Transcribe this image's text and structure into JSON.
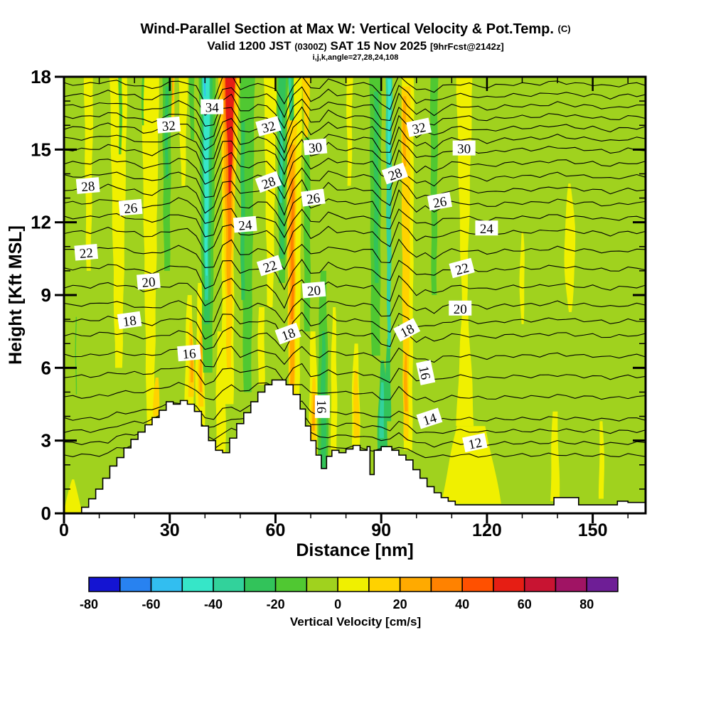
{
  "header": {
    "title_main": "Wind-Parallel Section at Max W: Vertical Velocity & Pot.Temp.",
    "title_suffix": "(C)",
    "subtitle_p1": "Valid 1200 JST ",
    "subtitle_small1": "(0300Z)",
    "subtitle_p2": " SAT 15 Nov 2025 ",
    "subtitle_small2": "[9hrFcst@2142z]",
    "line3": "i,j,k,angle=27,28,24,108"
  },
  "chart_data": {
    "type": "heatmap",
    "title": "Wind-Parallel Section at Max W: Vertical Velocity & Pot.Temp. (C)",
    "xlabel": "Distance [nm]",
    "ylabel": "Height [Kft MSL]",
    "xlim": [
      0,
      165
    ],
    "ylim": [
      0,
      18
    ],
    "x_major_ticks": [
      0,
      30,
      60,
      90,
      120,
      150
    ],
    "x_minor_step": 10,
    "y_major_ticks": [
      0,
      3,
      6,
      9,
      12,
      15,
      18
    ],
    "y_minor_step": 1,
    "grid": false,
    "colorbar": {
      "label": "Vertical Velocity [cm/s]",
      "min": -80,
      "max": 90,
      "step": 10,
      "tick_values": [
        -80,
        -60,
        -40,
        -20,
        0,
        20,
        40,
        60,
        80
      ],
      "colors": [
        "#1414d2",
        "#2882f0",
        "#32bef0",
        "#36e6c8",
        "#32d29b",
        "#32c35a",
        "#50c832",
        "#a0d21e",
        "#f0f000",
        "#ffd200",
        "#ffaa00",
        "#ff8200",
        "#ff5000",
        "#e61e14",
        "#c81432",
        "#a01464",
        "#6e1e96"
      ]
    },
    "contour": {
      "variable": "Potential Temperature (C)",
      "interval": 1,
      "labeled_levels": [
        12,
        14,
        16,
        18,
        20,
        22,
        24,
        26,
        28,
        30,
        32,
        34
      ],
      "baseline_heights": {
        "11": 2.4,
        "12": 2.9,
        "13": 3.4,
        "14": 3.9,
        "15": 4.8,
        "16": 5.65,
        "17": 6.5,
        "18": 7.35,
        "19": 7.95,
        "20": 8.6,
        "21": 9.35,
        "22": 10.1,
        "23": 10.85,
        "24": 11.6,
        "25": 12.2,
        "26": 12.8,
        "27": 13.35,
        "28": 13.9,
        "29": 14.45,
        "30": 15.0,
        "31": 15.45,
        "32": 15.9,
        "33": 16.35,
        "34": 16.8,
        "35": 17.25,
        "36": 17.7
      },
      "labels": [
        {
          "v": 34,
          "x": 42.0,
          "z": 16.75,
          "r": 0
        },
        {
          "v": 32,
          "x": 29.7,
          "z": 16.0,
          "r": -5
        },
        {
          "v": 32,
          "x": 58.0,
          "z": 15.95,
          "r": -15
        },
        {
          "v": 30,
          "x": 71.3,
          "z": 15.1,
          "r": -5
        },
        {
          "v": 32,
          "x": 100.7,
          "z": 15.9,
          "r": -12
        },
        {
          "v": 30,
          "x": 113.5,
          "z": 15.05,
          "r": 0
        },
        {
          "v": 28,
          "x": 6.8,
          "z": 13.5,
          "r": -5
        },
        {
          "v": 26,
          "x": 18.9,
          "z": 12.6,
          "r": -5
        },
        {
          "v": 28,
          "x": 58.0,
          "z": 13.65,
          "r": -20
        },
        {
          "v": 26,
          "x": 70.7,
          "z": 13.0,
          "r": -8
        },
        {
          "v": 28,
          "x": 93.9,
          "z": 14.0,
          "r": -20
        },
        {
          "v": 26,
          "x": 106.6,
          "z": 12.85,
          "r": -10
        },
        {
          "v": 24,
          "x": 51.4,
          "z": 11.9,
          "r": -5
        },
        {
          "v": 24,
          "x": 119.9,
          "z": 11.75,
          "r": 0
        },
        {
          "v": 22,
          "x": 6.3,
          "z": 10.75,
          "r": -5
        },
        {
          "v": 22,
          "x": 58.4,
          "z": 10.2,
          "r": -18
        },
        {
          "v": 22,
          "x": 112.9,
          "z": 10.1,
          "r": -15
        },
        {
          "v": 20,
          "x": 24.0,
          "z": 9.55,
          "r": -5
        },
        {
          "v": 20,
          "x": 70.9,
          "z": 9.2,
          "r": -5
        },
        {
          "v": 20,
          "x": 112.4,
          "z": 8.45,
          "r": 0
        },
        {
          "v": 18,
          "x": 18.6,
          "z": 7.95,
          "r": -8
        },
        {
          "v": 18,
          "x": 63.6,
          "z": 7.4,
          "r": -20
        },
        {
          "v": 18,
          "x": 97.3,
          "z": 7.55,
          "r": -28
        },
        {
          "v": 16,
          "x": 35.5,
          "z": 6.6,
          "r": -5
        },
        {
          "v": 16,
          "x": 73.2,
          "z": 4.4,
          "r": 90
        },
        {
          "v": 16,
          "x": 102.5,
          "z": 5.8,
          "r": 78
        },
        {
          "v": 14,
          "x": 103.7,
          "z": 3.9,
          "r": -18
        },
        {
          "v": 12,
          "x": 116.6,
          "z": 2.9,
          "r": -12
        }
      ]
    },
    "wave_kinks": [
      {
        "x": 41,
        "a": -1.05,
        "w": 4
      },
      {
        "x": 46.5,
        "a": 0.6,
        "w": 2.5
      },
      {
        "x": 51,
        "a": -0.25,
        "w": 3
      },
      {
        "x": 62.5,
        "a": -0.85,
        "w": 3.5
      },
      {
        "x": 66.5,
        "a": 0.5,
        "w": 2.5
      },
      {
        "x": 71,
        "a": -0.3,
        "w": 3
      },
      {
        "x": 75,
        "a": 0.2,
        "w": 3
      },
      {
        "x": 91.5,
        "a": -0.75,
        "w": 3.5
      },
      {
        "x": 95.5,
        "a": 0.5,
        "w": 2.5
      },
      {
        "x": 100,
        "a": -0.3,
        "w": 3
      },
      {
        "x": 105,
        "a": -0.3,
        "w": 4
      },
      {
        "x": 13,
        "a": 0.15,
        "w": 5
      },
      {
        "x": 24,
        "a": -0.2,
        "w": 5
      },
      {
        "x": 33,
        "a": 0.15,
        "w": 4
      },
      {
        "x": 120,
        "a": -0.12,
        "w": 6
      },
      {
        "x": 140,
        "a": 0.1,
        "w": 6
      },
      {
        "x": 155,
        "a": -0.1,
        "w": 5
      }
    ],
    "fill_bands": [
      [
        8,
        7,
        10,
        18,
        1.2,
        2.0,
        2.6
      ],
      [
        8,
        15.5,
        6,
        18,
        2.0,
        3.5,
        5.0
      ],
      [
        8,
        24.5,
        3.5,
        18,
        2.0,
        3.5,
        5.0
      ],
      [
        8,
        33.8,
        13.5,
        18,
        1.0,
        2.0,
        2.6
      ],
      [
        8,
        35.6,
        3.8,
        9,
        2.6,
        2.8,
        1.2
      ],
      [
        8,
        38.6,
        3.4,
        9.5,
        2.6,
        3.0,
        1.0
      ],
      [
        8,
        44.5,
        2.5,
        7.5,
        2.6,
        3.0,
        2.0
      ],
      [
        8,
        46.5,
        4.5,
        14.5,
        3.2,
        3.6,
        3.2
      ],
      [
        8,
        58.5,
        8.5,
        18,
        1.6,
        2.6,
        3.6
      ],
      [
        8,
        56,
        5.3,
        8.5,
        1.8,
        2.0,
        1.6
      ],
      [
        8,
        65.3,
        3.2,
        18,
        2.8,
        3.6,
        4.6
      ],
      [
        8,
        70.7,
        1.9,
        7.5,
        2.2,
        2.6,
        1.4
      ],
      [
        8,
        76.6,
        2.3,
        8.5,
        1.6,
        2.0,
        0.8
      ],
      [
        8,
        81,
        13.5,
        18,
        1.0,
        1.4,
        1.8
      ],
      [
        8,
        82.8,
        2.7,
        7,
        2.2,
        2.6,
        1.0
      ],
      [
        8,
        97.6,
        2.6,
        18,
        2.4,
        3.0,
        3.4
      ],
      [
        8,
        113.6,
        8.5,
        18,
        1.4,
        3.2,
        4.6
      ],
      [
        8,
        115.5,
        0.4,
        3.6,
        17,
        13,
        8
      ],
      [
        8,
        113.8,
        3.6,
        8.8,
        5.0,
        3.6,
        1.2
      ],
      [
        8,
        130,
        7.8,
        11.6,
        0.6,
        2.2,
        0.5
      ],
      [
        8,
        143.5,
        8.3,
        13.6,
        0.8,
        5.4,
        0.6
      ],
      [
        8,
        139.3,
        0.5,
        4.2,
        2.6,
        2.2,
        1.4
      ],
      [
        8,
        152.5,
        0.6,
        3.8,
        1.4,
        1.6,
        0.8
      ],
      [
        8,
        2.6,
        0,
        1.4,
        5.2,
        3.4,
        0.6
      ],
      [
        9,
        26.3,
        4.0,
        5.6,
        1.8,
        2.0,
        0.8
      ],
      [
        9,
        30.8,
        16.2,
        18,
        0.8,
        1.1,
        1.4
      ],
      [
        9,
        36.1,
        4.8,
        7.9,
        1.6,
        1.8,
        0.7
      ],
      [
        9,
        38.8,
        4.4,
        8.2,
        1.4,
        1.6,
        0.6
      ],
      [
        9,
        46.8,
        6,
        18,
        1.2,
        2.4,
        6.2
      ],
      [
        9,
        64.6,
        3.5,
        16.2,
        1.6,
        2.4,
        2.8
      ],
      [
        9,
        68.7,
        15.3,
        18,
        0.8,
        1.6,
        2.4
      ],
      [
        9,
        70.8,
        2.9,
        5.6,
        1.6,
        1.8,
        0.8
      ],
      [
        9,
        82.9,
        3.1,
        5.9,
        1.6,
        1.9,
        0.8
      ],
      [
        9,
        97,
        3,
        17.6,
        1.4,
        2.2,
        2.6
      ],
      [
        10,
        36.2,
        5.4,
        7.2,
        0.8,
        0.9,
        0.4
      ],
      [
        10,
        38.9,
        5,
        7.3,
        0.7,
        0.8,
        0.3
      ],
      [
        10,
        46.8,
        9,
        18,
        0.9,
        2.2,
        4.3
      ],
      [
        10,
        64.7,
        5,
        15.2,
        1.0,
        1.8,
        1.6
      ],
      [
        10,
        97,
        4.2,
        6.6,
        0.9,
        1.1,
        0.5
      ],
      [
        10,
        96.6,
        14.3,
        17.2,
        0.7,
        1.1,
        0.8
      ],
      [
        10,
        70.9,
        3.4,
        4.9,
        0.7,
        0.8,
        0.4
      ],
      [
        10,
        30.9,
        17,
        18,
        0.35,
        0.45,
        0.55
      ],
      [
        11,
        46.9,
        11.2,
        18,
        0.7,
        1.6,
        3.4
      ],
      [
        11,
        64.8,
        8,
        13.8,
        0.6,
        0.9,
        0.7
      ],
      [
        13,
        47.1,
        13.2,
        18,
        0.5,
        1.6,
        2.9
      ],
      [
        6,
        3.4,
        4.9,
        8.1,
        0.28,
        0.3,
        0.28
      ],
      [
        6,
        16,
        14.8,
        18,
        0.7,
        0.85,
        1.0
      ],
      [
        6,
        22.4,
        16,
        18,
        0.5,
        0.6,
        0.7
      ],
      [
        6,
        29.2,
        10,
        18,
        1.6,
        2.2,
        2.6
      ],
      [
        6,
        36.3,
        15.4,
        18,
        1.0,
        1.2,
        1.5
      ],
      [
        6,
        40.7,
        5.8,
        18,
        2.6,
        3.8,
        4.8
      ],
      [
        6,
        52,
        5,
        18,
        2.2,
        3.0,
        4.2
      ],
      [
        6,
        61.9,
        9.5,
        18,
        1.8,
        2.6,
        3.2
      ],
      [
        6,
        69,
        7.5,
        15.5,
        1.6,
        2.0,
        1.4
      ],
      [
        6,
        73.5,
        1.8,
        10,
        2.8,
        3.2,
        1.6
      ],
      [
        6,
        88.4,
        6.5,
        18,
        2.4,
        3.0,
        3.4
      ],
      [
        6,
        105,
        9,
        18,
        1.4,
        1.8,
        2.2
      ],
      [
        5,
        29.1,
        13.8,
        17.6,
        0.8,
        1.0,
        0.9
      ],
      [
        5,
        40.6,
        7.8,
        18,
        1.6,
        2.6,
        3.3
      ],
      [
        5,
        50.7,
        8.8,
        16.2,
        1.0,
        1.3,
        1.0
      ],
      [
        5,
        61.8,
        10.5,
        18,
        1.1,
        1.7,
        2.1
      ],
      [
        5,
        64.5,
        16.2,
        18,
        1.2,
        1.4,
        1.7
      ],
      [
        5,
        73.6,
        1.8,
        7.5,
        1.4,
        1.7,
        0.8
      ],
      [
        5,
        88.6,
        9.5,
        17.4,
        1.1,
        1.4,
        1.2
      ],
      [
        5,
        92,
        3.8,
        7.2,
        1.4,
        1.6,
        0.9
      ],
      [
        5,
        90.4,
        2.6,
        6.3,
        2.8,
        3.0,
        0.9
      ],
      [
        4,
        40.4,
        8.8,
        18,
        0.9,
        1.6,
        2.3
      ],
      [
        4,
        61.6,
        12.8,
        16.6,
        0.7,
        0.9,
        0.6
      ],
      [
        4,
        64.2,
        16.6,
        18,
        0.5,
        0.6,
        0.8
      ],
      [
        4,
        92.2,
        6.8,
        18,
        0.9,
        1.4,
        1.9
      ],
      [
        4,
        90.2,
        3.1,
        5.4,
        1.3,
        1.4,
        0.7
      ],
      [
        3,
        40.4,
        9.8,
        18,
        0.5,
        1.2,
        1.9
      ],
      [
        3,
        92.3,
        14.3,
        17.9,
        0.5,
        0.8,
        1.0
      ],
      [
        2,
        40.0,
        17.2,
        18,
        0.3,
        0.4,
        0.5
      ]
    ],
    "terrain_steps": [
      [
        5,
        0.25
      ],
      [
        7,
        0.6
      ],
      [
        9,
        1.0
      ],
      [
        11,
        1.45
      ],
      [
        13,
        1.95
      ],
      [
        15,
        2.3
      ],
      [
        17,
        2.7
      ],
      [
        19,
        3.05
      ],
      [
        21,
        3.35
      ],
      [
        23,
        3.65
      ],
      [
        25,
        3.95
      ],
      [
        27,
        4.25
      ],
      [
        29,
        4.6
      ],
      [
        31,
        4.5
      ],
      [
        33,
        4.65
      ],
      [
        35,
        4.5
      ],
      [
        37,
        4.2
      ],
      [
        39,
        3.6
      ],
      [
        41,
        3.0
      ],
      [
        43,
        2.6
      ],
      [
        45,
        2.5
      ],
      [
        47,
        3.1
      ],
      [
        49,
        3.7
      ],
      [
        51,
        4.15
      ],
      [
        53,
        4.6
      ],
      [
        55,
        5.0
      ],
      [
        57,
        5.3
      ],
      [
        59,
        5.5
      ],
      [
        63,
        5.3
      ],
      [
        65,
        4.9
      ],
      [
        67,
        4.3
      ],
      [
        68.5,
        3.6
      ],
      [
        70,
        3.0
      ],
      [
        71.5,
        2.4
      ],
      [
        73,
        1.85
      ],
      [
        74.5,
        2.35
      ],
      [
        76,
        2.6
      ],
      [
        78,
        2.5
      ],
      [
        80,
        2.65
      ],
      [
        82,
        2.8
      ],
      [
        84,
        2.6
      ],
      [
        86,
        2.75
      ],
      [
        86.8,
        1.6
      ],
      [
        88,
        2.6
      ],
      [
        90,
        2.75
      ],
      [
        93,
        2.6
      ],
      [
        95,
        2.4
      ],
      [
        97,
        2.2
      ],
      [
        99,
        1.8
      ],
      [
        101,
        1.45
      ],
      [
        103,
        1.1
      ],
      [
        105,
        0.85
      ],
      [
        107,
        0.65
      ],
      [
        109,
        0.5
      ],
      [
        111,
        0.35
      ],
      [
        139,
        0.65
      ],
      [
        146,
        0.35
      ],
      [
        157,
        0.5
      ],
      [
        160,
        0.45
      ]
    ]
  }
}
